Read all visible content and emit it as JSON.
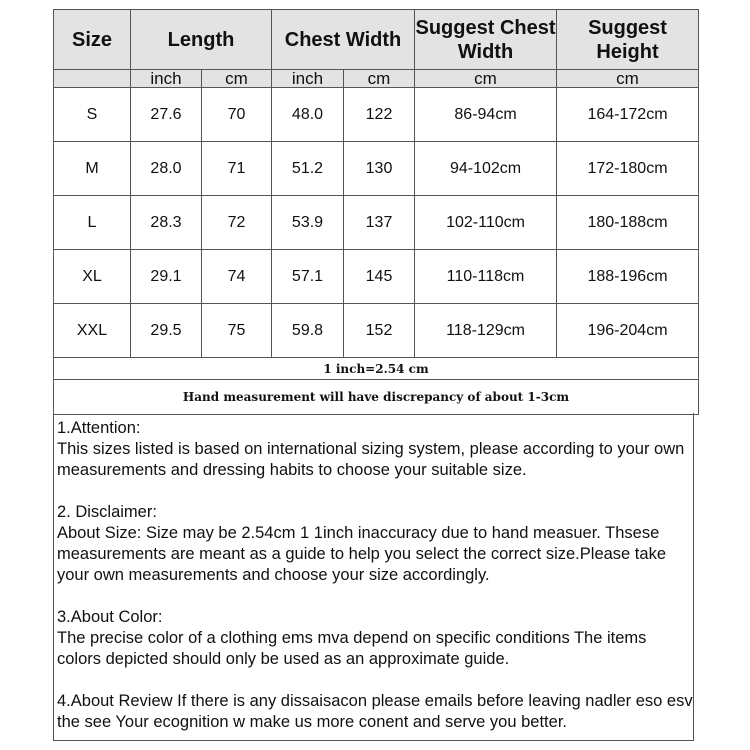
{
  "header": {
    "size": "Size",
    "length": "Length",
    "chest_width": "Chest Width",
    "suggest_chest": "Suggest Chest Width",
    "suggest_height": "Suggest Height"
  },
  "units": [
    "inch",
    "cm",
    "inch",
    "cm",
    "cm",
    "cm"
  ],
  "rows": [
    {
      "size": "S",
      "len_in": "27.6",
      "len_cm": "70",
      "chest_in": "48.0",
      "chest_cm": "122",
      "s_chest": "86-94cm",
      "s_height": "164-172cm"
    },
    {
      "size": "M",
      "len_in": "28.0",
      "len_cm": "71",
      "chest_in": "51.2",
      "chest_cm": "130",
      "s_chest": "94-102cm",
      "s_height": "172-180cm"
    },
    {
      "size": "L",
      "len_in": "28.3",
      "len_cm": "72",
      "chest_in": "53.9",
      "chest_cm": "137",
      "s_chest": "102-110cm",
      "s_height": "180-188cm"
    },
    {
      "size": "XL",
      "len_in": "29.1",
      "len_cm": "74",
      "chest_in": "57.1",
      "chest_cm": "145",
      "s_chest": "110-118cm",
      "s_height": "188-196cm"
    },
    {
      "size": "XXL",
      "len_in": "29.5",
      "len_cm": "75",
      "chest_in": "59.8",
      "chest_cm": "152",
      "s_chest": "118-129cm",
      "s_height": "196-204cm"
    }
  ],
  "conversion": "1 inch=2.54 cm",
  "discrepancy": "Hand measurement will have discrepancy of about 1-3cm",
  "notes": [
    {
      "title": "1.Attention:",
      "body": "This sizes listed is based on international sizing system, please according to your own measurements and dressing   habits to choose your suitable size."
    },
    {
      "title": "2. Disclaimer:",
      "body": "About Size: Size may be 2.54cm 1 1inch inaccuracy due to hand measuer. Thsese measurements are meant as a   guide to help you select the correct size.Please take your own measurements and choose your size accordingly."
    },
    {
      "title": "3.About Color:",
      "body": "The precise color of a clothing ems mva depend on specific conditions The items colors depicted should only be   used as an approximate guide."
    },
    {
      "title": "",
      "body": "4.About Review If there is any dissaisacon please emails before leaving nadler eso esv the see Your ecognition w   make us more conent and serve you better."
    }
  ]
}
